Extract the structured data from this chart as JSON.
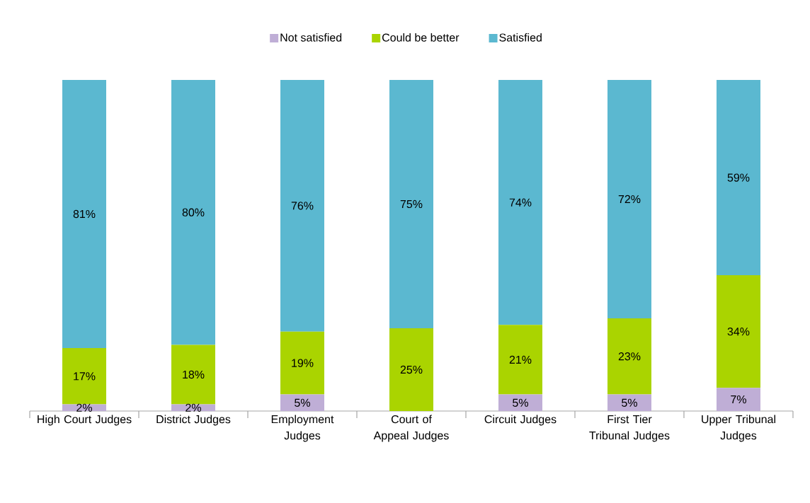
{
  "chart_data": {
    "type": "bar",
    "stacked": true,
    "categories": [
      "High Court Judges",
      "District Judges",
      "Employment Judges",
      "Court of Appeal Judges",
      "Circuit Judges",
      "First Tier Tribunal Judges",
      "Upper Tribunal Judges"
    ],
    "ylim": [
      0,
      100
    ],
    "legend": "top",
    "series": [
      {
        "name": "Not satisfied",
        "color": "#bfaed6",
        "values": [
          2,
          2,
          5,
          0,
          5,
          5,
          7
        ],
        "value_labels": [
          "2%",
          "2%",
          "5%",
          null,
          "5%",
          "5%",
          "7%"
        ]
      },
      {
        "name": "Could be better",
        "color": "#aad400",
        "values": [
          17,
          18,
          19,
          25,
          21,
          23,
          34
        ],
        "value_labels": [
          "17%",
          "18%",
          "19%",
          "25%",
          "21%",
          "23%",
          "34%"
        ]
      },
      {
        "name": "Satisfied",
        "color": "#5bb8d0",
        "values": [
          81,
          80,
          76,
          75,
          74,
          72,
          59
        ],
        "value_labels": [
          "81%",
          "80%",
          "76%",
          "75%",
          "74%",
          "72%",
          "59%"
        ]
      }
    ]
  }
}
